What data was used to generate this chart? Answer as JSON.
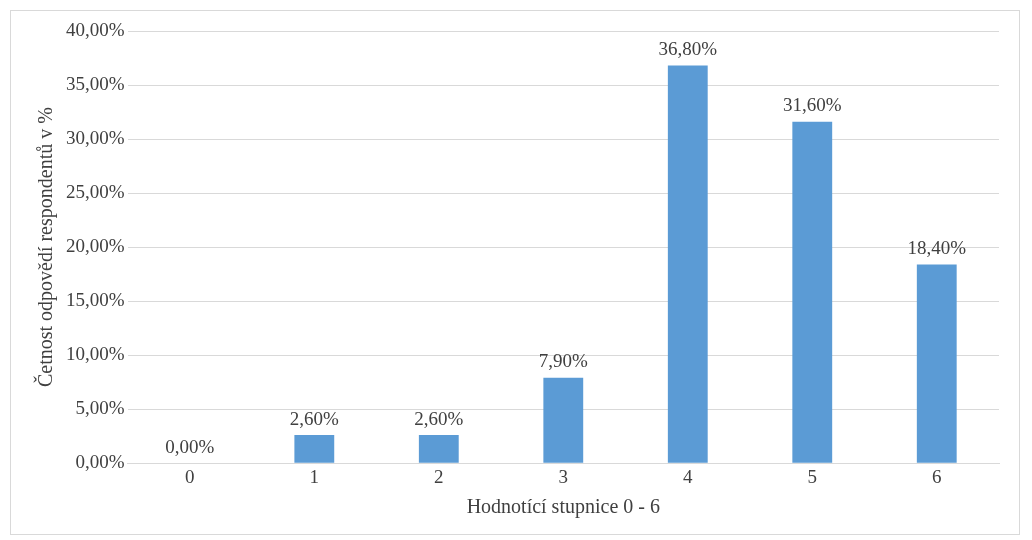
{
  "chart_data": {
    "type": "bar",
    "categories": [
      "0",
      "1",
      "2",
      "3",
      "4",
      "5",
      "6"
    ],
    "values": [
      0,
      2.6,
      2.6,
      7.9,
      36.8,
      31.6,
      18.4
    ],
    "value_labels": [
      "0,00%",
      "2,60%",
      "2,60%",
      "7,90%",
      "36,80%",
      "31,60%",
      "18,40%"
    ],
    "color": "#5b9bd5",
    "xlabel": "Hodnotící stupnice 0 - 6",
    "ylabel": "Četnost odpovědí respondentů v %",
    "ylim": [
      0,
      40
    ],
    "yticks": [
      {
        "value": 0,
        "label": "0,00%"
      },
      {
        "value": 5,
        "label": "5,00%"
      },
      {
        "value": 10,
        "label": "10,00%"
      },
      {
        "value": 15,
        "label": "15,00%"
      },
      {
        "value": 20,
        "label": "20,00%"
      },
      {
        "value": 25,
        "label": "25,00%"
      },
      {
        "value": 30,
        "label": "30,00%"
      },
      {
        "value": 35,
        "label": "35,00%"
      },
      {
        "value": 40,
        "label": "40,00%"
      }
    ],
    "grid": "y"
  }
}
